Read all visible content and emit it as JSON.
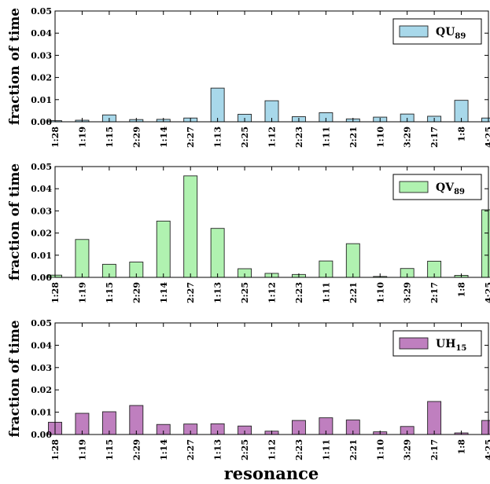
{
  "figure": {
    "xlabel": "resonance"
  },
  "chart_data": [
    {
      "type": "bar",
      "ylabel": "fraction of time",
      "categories": [
        "1:28",
        "1:19",
        "1:15",
        "2:29",
        "1:14",
        "2:27",
        "1:13",
        "2:25",
        "1:12",
        "2:23",
        "1:11",
        "2:21",
        "1:10",
        "3:29",
        "2:17",
        "1:8",
        "4:25"
      ],
      "ylim": [
        0,
        0.05
      ],
      "yticks": [
        "0.00",
        "0.01",
        "0.02",
        "0.03",
        "0.04",
        "0.05"
      ],
      "legend": {
        "name": "QU",
        "sub": "89",
        "placement": "top-right"
      },
      "color": "#a8d8ea",
      "series": [
        {
          "name": "QU89",
          "values": [
            0.0005,
            0.0007,
            0.0031,
            0.001,
            0.0011,
            0.0017,
            0.0152,
            0.0034,
            0.0095,
            0.0023,
            0.0041,
            0.0013,
            0.0021,
            0.0035,
            0.0025,
            0.0097,
            0.0017
          ]
        }
      ]
    },
    {
      "type": "bar",
      "ylabel": "fraction of time",
      "categories": [
        "1:28",
        "1:19",
        "1:15",
        "2:29",
        "1:14",
        "2:27",
        "1:13",
        "2:25",
        "1:12",
        "2:23",
        "1:11",
        "2:21",
        "1:10",
        "3:29",
        "2:17",
        "1:8",
        "4:25"
      ],
      "ylim": [
        0,
        0.05
      ],
      "yticks": [
        "0.00",
        "0.01",
        "0.02",
        "0.03",
        "0.04",
        "0.05"
      ],
      "legend": {
        "name": "QV",
        "sub": "89",
        "placement": "top-right"
      },
      "color": "#b0f2b0",
      "series": [
        {
          "name": "QV89",
          "values": [
            0.001,
            0.0171,
            0.0059,
            0.0069,
            0.0254,
            0.0458,
            0.0221,
            0.0039,
            0.0018,
            0.0013,
            0.0074,
            0.0152,
            0.0004,
            0.004,
            0.0073,
            0.0009,
            0.0305
          ]
        }
      ]
    },
    {
      "type": "bar",
      "ylabel": "fraction of time",
      "categories": [
        "1:28",
        "1:19",
        "1:15",
        "2:29",
        "1:14",
        "2:27",
        "1:13",
        "2:25",
        "1:12",
        "2:23",
        "1:11",
        "2:21",
        "1:10",
        "3:29",
        "2:17",
        "1:8",
        "4:25"
      ],
      "ylim": [
        0,
        0.05
      ],
      "yticks": [
        "0.00",
        "0.01",
        "0.02",
        "0.03",
        "0.04",
        "0.05"
      ],
      "legend": {
        "name": "UH",
        "sub": "15",
        "placement": "top-right"
      },
      "color": "#bf7fbf",
      "series": [
        {
          "name": "UH15",
          "values": [
            0.0055,
            0.0095,
            0.0102,
            0.013,
            0.0045,
            0.0047,
            0.0048,
            0.0038,
            0.0015,
            0.0063,
            0.0075,
            0.0065,
            0.0012,
            0.0036,
            0.0148,
            0.0007,
            0.0063
          ]
        }
      ]
    }
  ]
}
